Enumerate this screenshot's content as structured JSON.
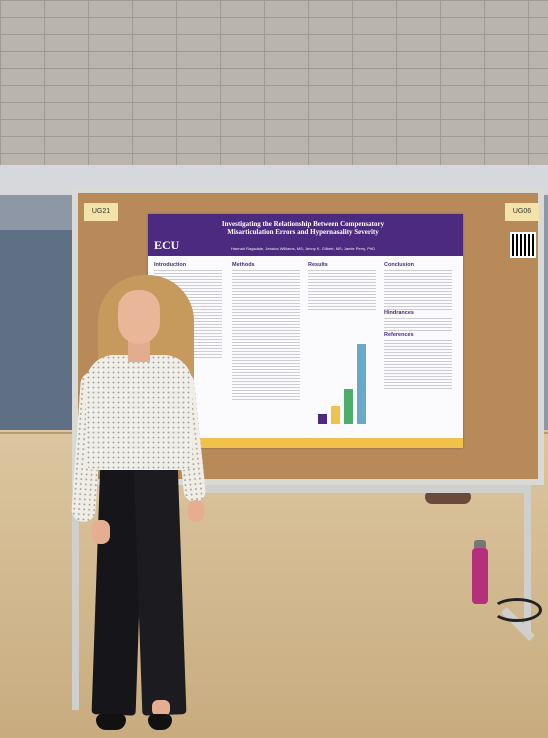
{
  "labels": {
    "left_tag": "UG21",
    "right_tag": "UG06"
  },
  "poster": {
    "title": "Investigating the Relationship Between Compensatory Misarticulation Errors and Hypernasality Severity",
    "authors": "Hannah Ragsdale, Jessica Williams, MS; Jenny K. Gilbert, MS; Jamie Perry, PhD",
    "logo": "ECU",
    "sections": [
      "Introduction",
      "Methods",
      "Results",
      "Conclusion",
      "Hindrances",
      "References"
    ],
    "chart_values": [
      10,
      18,
      35,
      80
    ]
  },
  "colors": {
    "poster_header": "#4b2a80",
    "poster_accent": "#f0c24b",
    "bottle": "#b5307b"
  }
}
